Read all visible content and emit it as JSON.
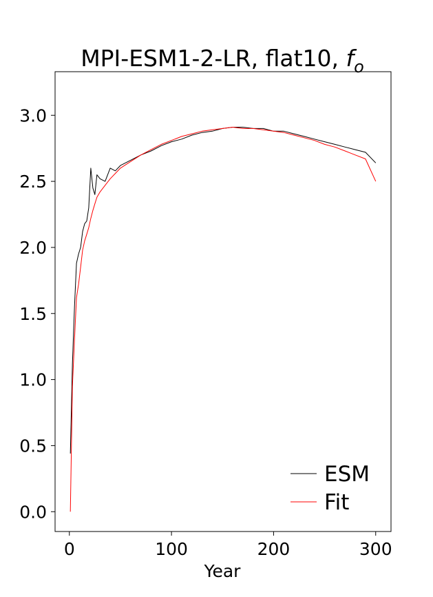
{
  "chart_data": {
    "type": "line",
    "title": "MPI-ESM1-2-LR, flat10, ",
    "title_symbol": "f",
    "title_subscript": "o",
    "xlabel": "Year",
    "ylabel": "",
    "xlim": [
      -14,
      315
    ],
    "ylim": [
      -0.15,
      3.33
    ],
    "x_ticks": [
      0,
      100,
      200,
      300
    ],
    "y_ticks": [
      0.0,
      0.5,
      1.0,
      1.5,
      2.0,
      2.5,
      3.0
    ],
    "x_tick_labels": [
      "0",
      "100",
      "200",
      "300"
    ],
    "y_tick_labels": [
      "0.0",
      "0.5",
      "1.0",
      "1.5",
      "2.0",
      "2.5",
      "3.0"
    ],
    "grid": false,
    "legend_position": "lower-right",
    "series": [
      {
        "name": "ESM",
        "color": "#000000",
        "x": [
          1,
          3,
          5,
          7,
          9,
          11,
          13,
          15,
          17,
          19,
          21,
          23,
          25,
          27,
          30,
          35,
          40,
          45,
          50,
          60,
          70,
          80,
          90,
          100,
          110,
          120,
          130,
          140,
          150,
          160,
          170,
          180,
          190,
          200,
          210,
          220,
          230,
          240,
          250,
          260,
          270,
          280,
          290,
          300
        ],
        "values": [
          0.44,
          1.12,
          1.55,
          1.88,
          1.95,
          2.0,
          2.12,
          2.18,
          2.2,
          2.3,
          2.6,
          2.45,
          2.4,
          2.55,
          2.52,
          2.5,
          2.6,
          2.58,
          2.62,
          2.66,
          2.7,
          2.73,
          2.77,
          2.8,
          2.82,
          2.85,
          2.87,
          2.88,
          2.9,
          2.91,
          2.91,
          2.9,
          2.9,
          2.88,
          2.88,
          2.86,
          2.84,
          2.82,
          2.8,
          2.78,
          2.76,
          2.74,
          2.72,
          2.64
        ]
      },
      {
        "name": "Fit",
        "color": "#ff0000",
        "x": [
          1,
          3,
          5,
          7,
          9,
          11,
          13,
          15,
          17,
          19,
          21,
          23,
          25,
          27,
          30,
          35,
          40,
          45,
          50,
          60,
          70,
          80,
          90,
          100,
          110,
          120,
          130,
          140,
          150,
          160,
          170,
          180,
          190,
          200,
          210,
          220,
          230,
          240,
          250,
          260,
          270,
          280,
          290,
          300
        ],
        "values": [
          0.0,
          0.95,
          1.3,
          1.62,
          1.72,
          1.85,
          1.98,
          2.05,
          2.1,
          2.15,
          2.22,
          2.28,
          2.33,
          2.38,
          2.42,
          2.47,
          2.52,
          2.56,
          2.6,
          2.65,
          2.7,
          2.74,
          2.78,
          2.81,
          2.84,
          2.86,
          2.88,
          2.89,
          2.9,
          2.91,
          2.9,
          2.9,
          2.89,
          2.88,
          2.87,
          2.85,
          2.83,
          2.81,
          2.78,
          2.76,
          2.73,
          2.7,
          2.67,
          2.5
        ]
      }
    ]
  }
}
